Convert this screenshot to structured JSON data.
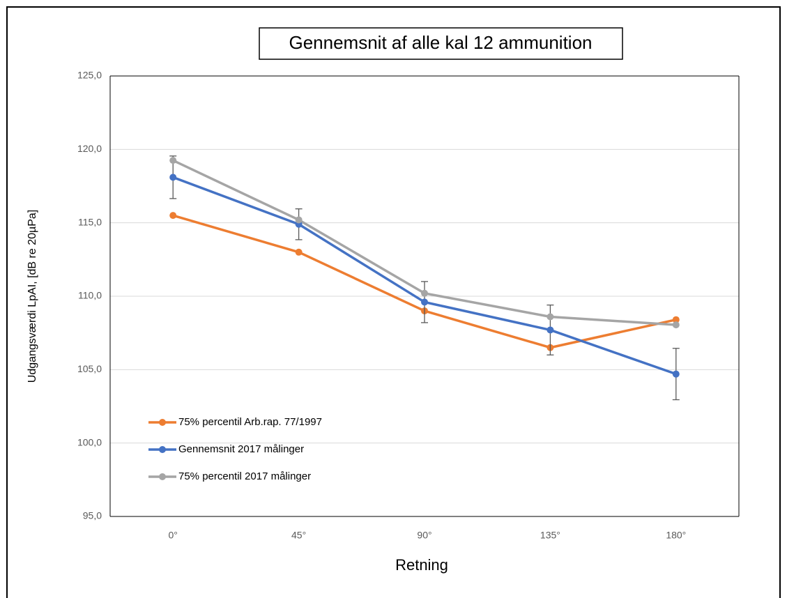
{
  "chart_data": {
    "type": "line",
    "title": "Gennemsnit  af alle kal 12 ammunition",
    "x_label": "Retning",
    "y_label": "Udgangsværdi LpAI, [dB re 20µPa]",
    "categories": [
      "0°",
      "45°",
      "90°",
      "135°",
      "180°"
    ],
    "series": [
      {
        "name": "75% percentil Arb.rap. 77/1997",
        "color": "#ed7d31",
        "values": [
          115.5,
          113.0,
          109.0,
          106.5,
          108.4
        ]
      },
      {
        "name": "Gennemsnit 2017 målinger",
        "color": "#4472c4",
        "values": [
          118.1,
          114.9,
          109.6,
          107.7,
          104.7
        ],
        "error": [
          1.45,
          1.05,
          1.4,
          1.7,
          1.75
        ]
      },
      {
        "name": "75% percentil 2017 målinger",
        "color": "#a5a5a5",
        "values": [
          119.25,
          115.2,
          110.2,
          108.6,
          108.05
        ]
      }
    ],
    "ylim": [
      95,
      125
    ],
    "yticks": [
      {
        "value": 95,
        "label": "95,0"
      },
      {
        "value": 100,
        "label": "100,0"
      },
      {
        "value": 105,
        "label": "105,0"
      },
      {
        "value": 110,
        "label": "110,0"
      },
      {
        "value": 115,
        "label": "115,0"
      },
      {
        "value": 120,
        "label": "120,0"
      },
      {
        "value": 125,
        "label": "125,0"
      }
    ],
    "grid": true,
    "legend": "lower left"
  }
}
